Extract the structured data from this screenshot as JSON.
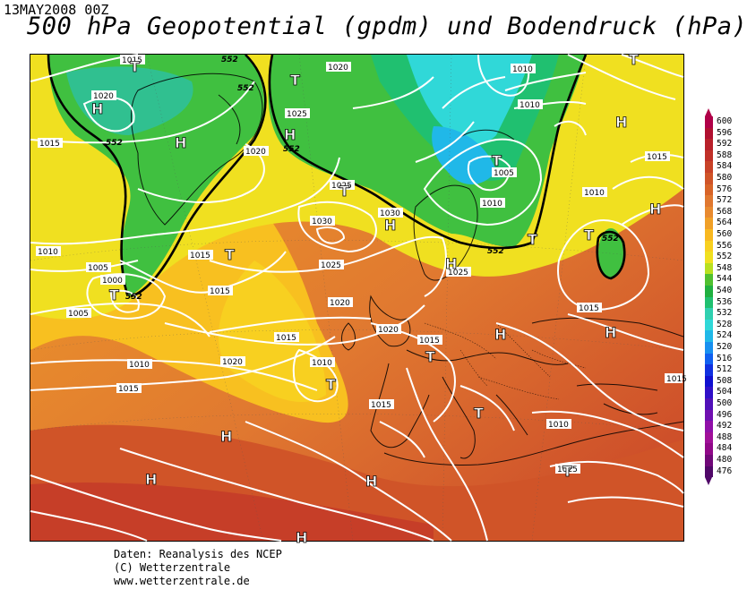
{
  "header": {
    "datetime": "13MAY2008 00Z",
    "title": "500 hPa Geopotential (gpdm) und Bodendruck (hPa)"
  },
  "credits": {
    "line1": "Daten: Reanalysis des NCEP",
    "line2": "(C) Wetterzentrale",
    "line3": "www.wetterzentrale.de"
  },
  "legend": {
    "unit_note": "gpdm",
    "levels": [
      "600",
      "596",
      "592",
      "588",
      "584",
      "580",
      "576",
      "572",
      "568",
      "564",
      "560",
      "556",
      "552",
      "548",
      "544",
      "540",
      "536",
      "532",
      "528",
      "524",
      "520",
      "516",
      "512",
      "508",
      "504",
      "500",
      "496",
      "492",
      "488",
      "484",
      "480",
      "476"
    ],
    "colors": [
      "#b00048",
      "#b01030",
      "#b8202a",
      "#c03028",
      "#c84228",
      "#d05428",
      "#d86428",
      "#e07830",
      "#e88a30",
      "#f0a028",
      "#f8b820",
      "#f8d020",
      "#f0e020",
      "#b8e020",
      "#50c030",
      "#20b040",
      "#20c070",
      "#30d0b0",
      "#30d8d8",
      "#20b8e8",
      "#1890f0",
      "#1060f0",
      "#1030e0",
      "#1010d0",
      "#3010c8",
      "#5010b8",
      "#7010b0",
      "#9010a8",
      "#a01098",
      "#900888",
      "#700878",
      "#500868"
    ]
  },
  "map": {
    "pressure_labels": [
      "1015",
      "1020",
      "1020",
      "1015",
      "1025",
      "1020",
      "1025",
      "1030",
      "1030",
      "1010",
      "1010",
      "1005",
      "1000",
      "1015",
      "1015",
      "1025",
      "1020",
      "1020",
      "1015",
      "1010",
      "1015",
      "1020",
      "1010",
      "1015",
      "1025",
      "1015",
      "1015",
      "1010",
      "1005",
      "1010",
      "1005",
      "1010",
      "1015",
      "1025",
      "1010",
      "1015"
    ],
    "height_labels": [
      "552",
      "552",
      "552",
      "552",
      "552",
      "552",
      "552"
    ],
    "pressure_centers": [
      "T",
      "H",
      "H",
      "T",
      "H",
      "T",
      "T",
      "H",
      "H",
      "T",
      "T",
      "T",
      "H",
      "H",
      "T",
      "T",
      "H",
      "T",
      "H",
      "H",
      "H",
      "T",
      "T",
      "H",
      "T",
      "H"
    ]
  }
}
